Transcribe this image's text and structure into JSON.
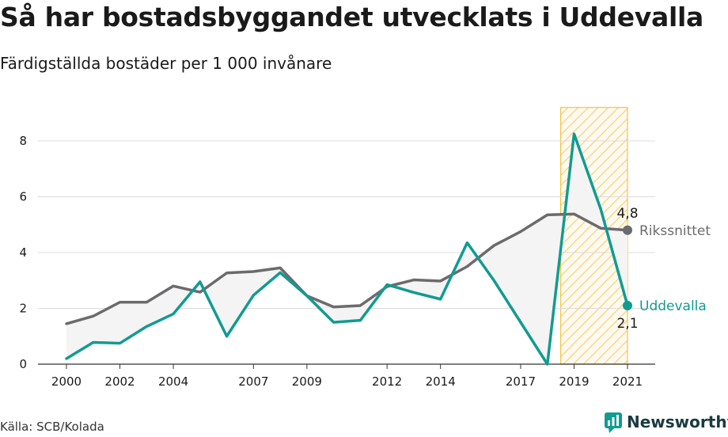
{
  "header": {
    "title": "Så har bostadsbyggandet utvecklats i Uddevalla",
    "subtitle": "Färdigställda bostäder per 1 000 invånare"
  },
  "footer": {
    "source": "Källa: SCB/Kolada",
    "brand": "Newsworthy",
    "brand_icon": "newsworthy-logo-icon"
  },
  "chart_data": {
    "type": "line",
    "x": [
      2000,
      2001,
      2002,
      2003,
      2004,
      2005,
      2006,
      2007,
      2008,
      2009,
      2010,
      2011,
      2012,
      2013,
      2014,
      2015,
      2016,
      2017,
      2018,
      2019,
      2020,
      2021
    ],
    "x_tick_labels": [
      "2000",
      "2002",
      "2004",
      "2007",
      "2009",
      "2012",
      "2014",
      "2017",
      "2019",
      "2021"
    ],
    "y_tick_labels": [
      "0",
      "2",
      "4",
      "6",
      "8"
    ],
    "ylim": [
      0,
      9.2
    ],
    "grid": true,
    "highlight_band": {
      "from": 2018.5,
      "to": 2021,
      "color": "#f5c242"
    },
    "series": [
      {
        "name": "Rikssnittet",
        "color": "#6d6a6e",
        "values": [
          1.45,
          1.72,
          2.22,
          2.22,
          2.8,
          2.58,
          3.27,
          3.32,
          3.45,
          2.45,
          2.05,
          2.1,
          2.78,
          3.02,
          2.98,
          3.5,
          4.25,
          4.75,
          5.35,
          5.38,
          4.87,
          4.8
        ],
        "end_label": "4,8"
      },
      {
        "name": "Uddevalla",
        "color": "#129b91",
        "values": [
          0.2,
          0.78,
          0.75,
          1.35,
          1.8,
          2.95,
          1.0,
          2.47,
          3.28,
          2.45,
          1.5,
          1.57,
          2.85,
          2.57,
          2.33,
          4.35,
          3.0,
          1.5,
          0.0,
          8.25,
          5.55,
          2.1
        ],
        "end_label": "2,1"
      }
    ]
  }
}
